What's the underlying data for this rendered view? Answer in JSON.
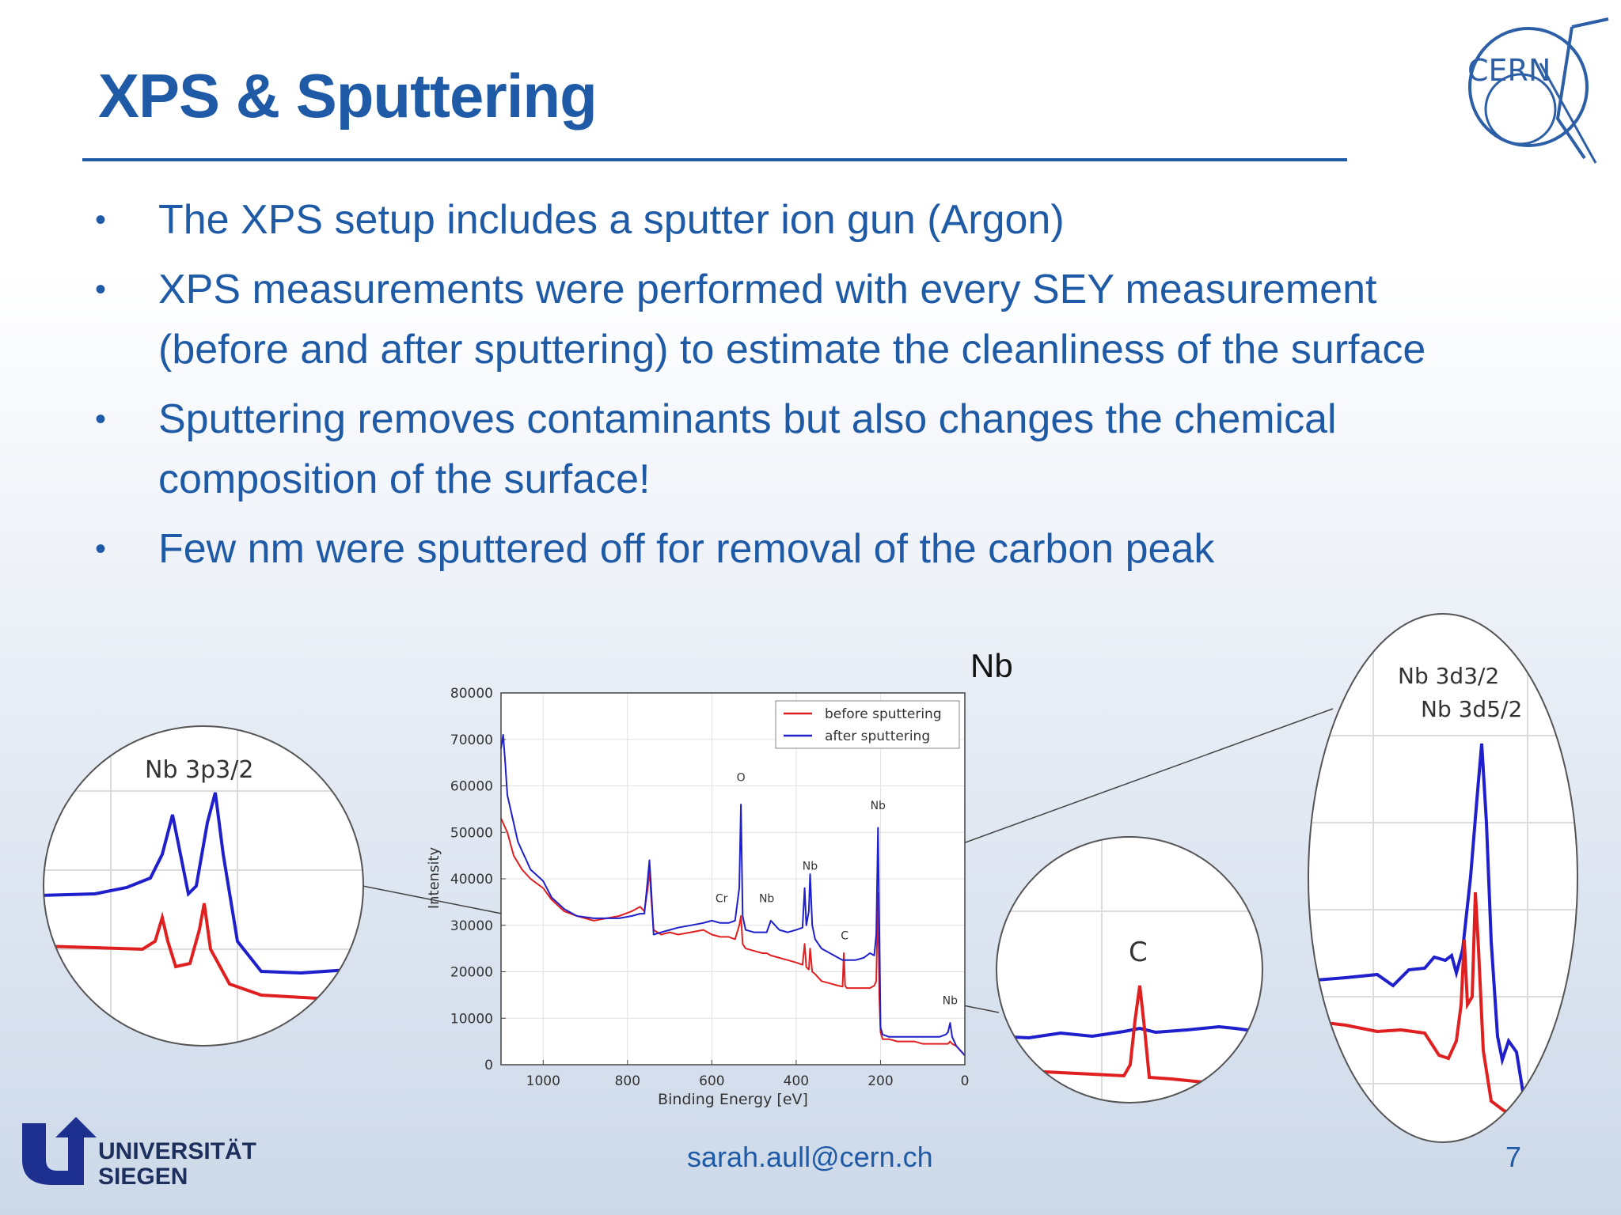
{
  "slide": {
    "title": "XPS & Sputtering",
    "bullets": [
      "The XPS setup includes a sputter ion gun (Argon)",
      "XPS measurements were performed with every SEY measurement (before and after sputtering) to estimate the cleanliness of the surface",
      "Sputtering removes contaminants but also changes the chemical composition of the surface!",
      "Few nm were sputtered off for removal of the carbon peak"
    ],
    "cern_logo_text": "CERN",
    "siegen_logo_line1": "UNIVERSITÄT",
    "siegen_logo_line2": "SIEGEN",
    "footer_email": "sarah.aull@cern.ch",
    "page_number": "7",
    "nb_callout": "Nb",
    "zoom_left_label": "Nb 3p3/2",
    "zoom_mid_label": "C",
    "zoom_right_label_1": "Nb 3d3/2",
    "zoom_right_label_2": "Nb 3d5/2"
  },
  "colors": {
    "accent": "#1f5aa6",
    "before": "#e02020",
    "after": "#1f1fcc"
  },
  "chart_data": {
    "type": "line",
    "title": "",
    "xlabel": "Binding Energy [eV]",
    "ylabel": "Intensity",
    "xlim": [
      1100,
      0
    ],
    "ylim": [
      0,
      80000
    ],
    "xticks": [
      1000,
      800,
      600,
      400,
      200,
      0
    ],
    "yticks": [
      0,
      10000,
      20000,
      30000,
      40000,
      50000,
      60000,
      70000,
      80000
    ],
    "legend": "top-right",
    "grid": true,
    "annotations": [
      {
        "text": "O",
        "x": 531,
        "y": 61000
      },
      {
        "text": "Nb",
        "x": 206,
        "y": 55000
      },
      {
        "text": "Nb",
        "x": 367,
        "y": 42000
      },
      {
        "text": "Cr",
        "x": 577,
        "y": 35000
      },
      {
        "text": "Nb",
        "x": 470,
        "y": 35000
      },
      {
        "text": "C",
        "x": 285,
        "y": 27000
      },
      {
        "text": "Nb",
        "x": 35,
        "y": 13000
      }
    ],
    "series": [
      {
        "name": "before sputtering",
        "color": "#e02020",
        "x": [
          1100,
          1085,
          1070,
          1050,
          1030,
          1000,
          980,
          950,
          920,
          880,
          850,
          820,
          790,
          770,
          760,
          752,
          748,
          744,
          738,
          720,
          700,
          680,
          650,
          620,
          600,
          580,
          560,
          545,
          535,
          531,
          527,
          520,
          500,
          480,
          470,
          460,
          440,
          420,
          400,
          385,
          380,
          376,
          370,
          367,
          362,
          355,
          340,
          320,
          300,
          290,
          287,
          284,
          280,
          260,
          240,
          225,
          215,
          210,
          206,
          203,
          200,
          195,
          180,
          160,
          140,
          120,
          100,
          80,
          60,
          45,
          40,
          35,
          30,
          20,
          10,
          0
        ],
        "y": [
          53000,
          50000,
          45000,
          42000,
          40000,
          38000,
          35500,
          33000,
          32000,
          31000,
          31500,
          32000,
          33000,
          34000,
          33000,
          38000,
          42000,
          36000,
          29000,
          28000,
          28500,
          28000,
          28500,
          29000,
          28000,
          27500,
          27500,
          27000,
          30000,
          32000,
          26000,
          25000,
          24500,
          24000,
          24000,
          23500,
          23000,
          22500,
          22000,
          21500,
          26000,
          21000,
          20500,
          25000,
          20000,
          19500,
          18000,
          17500,
          17000,
          16800,
          24000,
          17000,
          16500,
          16500,
          16500,
          16500,
          17000,
          18000,
          37000,
          15000,
          7000,
          5500,
          5500,
          5000,
          5000,
          5000,
          4500,
          4500,
          4500,
          4500,
          4500,
          5000,
          4500,
          4000,
          3000,
          2000
        ]
      },
      {
        "name": "after sputtering",
        "color": "#1f1fcc",
        "x": [
          1100,
          1095,
          1090,
          1085,
          1080,
          1070,
          1060,
          1050,
          1040,
          1030,
          1000,
          980,
          950,
          920,
          880,
          850,
          820,
          790,
          770,
          760,
          752,
          748,
          744,
          738,
          720,
          700,
          680,
          650,
          620,
          600,
          580,
          560,
          545,
          535,
          531,
          527,
          520,
          500,
          480,
          470,
          460,
          440,
          420,
          400,
          385,
          380,
          376,
          370,
          367,
          362,
          355,
          340,
          320,
          300,
          290,
          287,
          284,
          280,
          260,
          240,
          225,
          215,
          210,
          206,
          203,
          200,
          195,
          180,
          160,
          140,
          120,
          100,
          80,
          60,
          45,
          40,
          35,
          30,
          20,
          10,
          0
        ],
        "y": [
          68000,
          71000,
          65000,
          58000,
          56000,
          52000,
          48000,
          46000,
          44000,
          42000,
          39500,
          36000,
          33500,
          32000,
          31500,
          31500,
          31500,
          32000,
          32500,
          32500,
          40000,
          44000,
          38000,
          28000,
          28500,
          29000,
          29500,
          30000,
          30500,
          31000,
          30500,
          30500,
          31000,
          38000,
          56000,
          32000,
          29000,
          28500,
          28500,
          28500,
          31000,
          29000,
          28500,
          29000,
          29500,
          38000,
          30000,
          33000,
          41000,
          30000,
          27000,
          25000,
          24000,
          23000,
          22500,
          22500,
          22500,
          22500,
          22500,
          23000,
          24000,
          23500,
          28000,
          51000,
          30000,
          8000,
          6500,
          6000,
          6000,
          6000,
          6000,
          6000,
          6000,
          6000,
          6500,
          7000,
          9000,
          6000,
          4000,
          3000,
          2000
        ]
      }
    ]
  }
}
